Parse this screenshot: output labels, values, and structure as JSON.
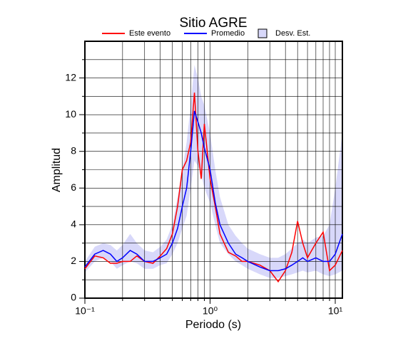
{
  "chart_data": {
    "type": "line",
    "title": "Sitio AGRE",
    "x_label": "Periodo (s)",
    "y_label": "Amplitud",
    "x_scale": "log",
    "grid": true,
    "xlim": [
      0.1,
      11.4
    ],
    "ylim": [
      0,
      14
    ],
    "xticks": [
      {
        "value": 0.1,
        "label": "10⁻¹"
      },
      {
        "value": 1,
        "label": "10⁰"
      },
      {
        "value": 10,
        "label": "10¹"
      }
    ],
    "xminor": [
      0.2,
      0.3,
      0.4,
      0.5,
      0.6,
      0.7,
      0.8,
      0.9,
      2,
      3,
      4,
      5,
      6,
      7,
      8,
      9
    ],
    "yticks": [
      0,
      2,
      4,
      6,
      8,
      10,
      12
    ],
    "yminor": [
      1,
      3,
      5,
      7,
      9,
      11,
      13
    ],
    "x": [
      0.1,
      0.12,
      0.14,
      0.16,
      0.18,
      0.2,
      0.23,
      0.26,
      0.3,
      0.35,
      0.4,
      0.45,
      0.5,
      0.55,
      0.6,
      0.65,
      0.7,
      0.75,
      0.8,
      0.85,
      0.9,
      1.0,
      1.1,
      1.2,
      1.4,
      1.6,
      1.8,
      2.0,
      2.5,
      3.0,
      3.5,
      4.0,
      4.5,
      5.0,
      5.5,
      6.0,
      7.0,
      8.0,
      9.0,
      10.0,
      11.4
    ],
    "series": [
      {
        "name": "Este evento",
        "color": "#ff0000",
        "values": [
          1.6,
          2.3,
          2.2,
          1.9,
          1.9,
          2.0,
          2.0,
          2.3,
          2.0,
          1.9,
          2.3,
          2.7,
          3.5,
          5.0,
          7.0,
          7.5,
          8.5,
          11.2,
          8.0,
          6.5,
          9.5,
          6.5,
          5.0,
          3.5,
          2.5,
          2.3,
          2.0,
          2.0,
          1.8,
          1.5,
          0.9,
          1.5,
          2.5,
          4.2,
          3.0,
          2.2,
          3.0,
          3.6,
          1.5,
          1.8,
          2.6
        ]
      },
      {
        "name": "Promedio",
        "color": "#0000ff",
        "values": [
          1.7,
          2.4,
          2.6,
          2.4,
          2.0,
          2.2,
          2.6,
          2.4,
          2.0,
          2.0,
          2.2,
          2.4,
          3.0,
          3.8,
          5.0,
          6.0,
          8.0,
          10.2,
          9.6,
          9.0,
          8.2,
          7.0,
          5.2,
          4.0,
          3.0,
          2.4,
          2.2,
          2.0,
          1.7,
          1.5,
          1.5,
          1.6,
          1.8,
          2.0,
          2.2,
          2.0,
          2.2,
          2.0,
          2.0,
          2.4,
          3.5
        ]
      }
    ],
    "band": {
      "name": "Desv. Est.",
      "color": "#d8d8fa",
      "upper": [
        2.0,
        2.8,
        3.0,
        2.9,
        2.6,
        2.9,
        3.5,
        3.0,
        2.6,
        2.5,
        2.8,
        3.2,
        4.0,
        5.5,
        7.0,
        8.5,
        10.5,
        12.7,
        12.0,
        11.0,
        10.5,
        9.0,
        7.0,
        5.5,
        4.0,
        3.4,
        3.0,
        2.7,
        2.4,
        2.2,
        2.2,
        2.4,
        2.7,
        3.0,
        3.2,
        3.0,
        3.3,
        3.4,
        4.0,
        6.0,
        9.0
      ],
      "lower": [
        1.4,
        2.0,
        2.2,
        2.0,
        1.6,
        1.8,
        2.0,
        1.9,
        1.6,
        1.6,
        1.8,
        1.9,
        2.4,
        3.0,
        3.8,
        4.5,
        6.0,
        7.5,
        7.2,
        6.8,
        6.0,
        5.2,
        4.0,
        3.0,
        2.4,
        2.0,
        1.8,
        1.6,
        1.3,
        1.1,
        1.1,
        1.2,
        1.3,
        1.4,
        1.5,
        1.4,
        1.5,
        1.3,
        1.2,
        1.3,
        1.5
      ]
    }
  }
}
